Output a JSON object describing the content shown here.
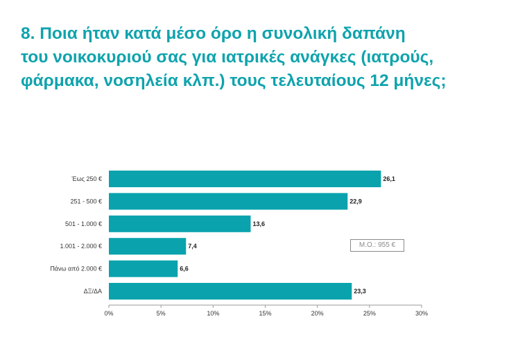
{
  "title": {
    "line1": "8. Ποια ήταν κατά μέσο όρο η συνολική δαπάνη",
    "line2": "του νοικοκυριού σας για ιατρικές ανάγκες (ιατρούς,",
    "line3": "φάρμακα, νοσηλεία κλπ.) τους τελευταίους 12 μήνες;"
  },
  "average_label": "Μ.Ο.: 955 €",
  "colors": {
    "accent": "#0fa3ad",
    "bar": "#0aa3ad",
    "axis": "#999999"
  },
  "chart_data": {
    "type": "bar",
    "orientation": "horizontal",
    "categories": [
      "Έως 250 €",
      "251 - 500 €",
      "501 - 1.000 €",
      "1.001 - 2.000 €",
      "Πάνω από 2.000 €",
      "ΔΞ/ΔΑ"
    ],
    "values": [
      26.1,
      22.9,
      13.6,
      7.4,
      6.6,
      23.3
    ],
    "value_labels": [
      "26,1",
      "22,9",
      "13,6",
      "7,4",
      "6,6",
      "23,3"
    ],
    "xlim": [
      0,
      30
    ],
    "x_ticks": [
      0,
      5,
      10,
      15,
      20,
      25,
      30
    ],
    "x_tick_labels": [
      "0%",
      "5%",
      "10%",
      "15%",
      "20%",
      "25%",
      "30%"
    ],
    "grid": false,
    "legend": "none"
  }
}
